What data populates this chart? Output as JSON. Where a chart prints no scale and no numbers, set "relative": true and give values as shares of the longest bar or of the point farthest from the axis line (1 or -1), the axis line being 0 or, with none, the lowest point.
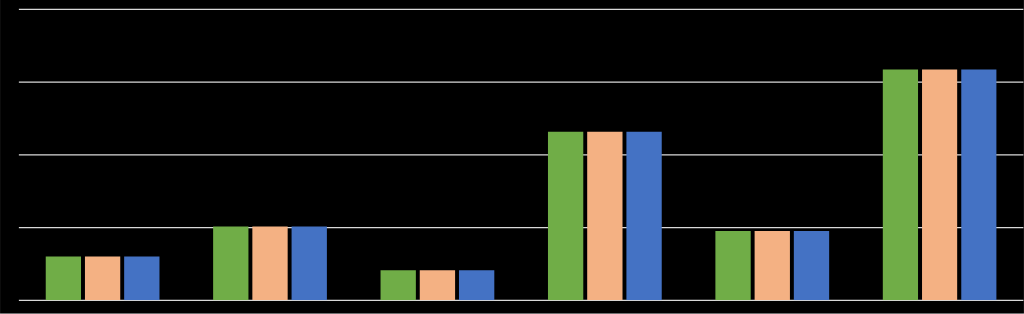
{
  "chart_data": {
    "type": "bar",
    "relative": true,
    "grid": "y",
    "categories": [
      null,
      null,
      null,
      null,
      null,
      null
    ],
    "series": [
      {
        "color": "#70ad47",
        "values": [
          0.19,
          0.32,
          0.13,
          0.73,
          0.3,
          1
        ]
      },
      {
        "color": "#f4b183",
        "values": [
          0.19,
          0.32,
          0.13,
          0.73,
          0.3,
          1
        ]
      },
      {
        "color": "#4472c4",
        "values": [
          0.19,
          0.32,
          0.13,
          0.73,
          0.3,
          1
        ]
      }
    ]
  }
}
